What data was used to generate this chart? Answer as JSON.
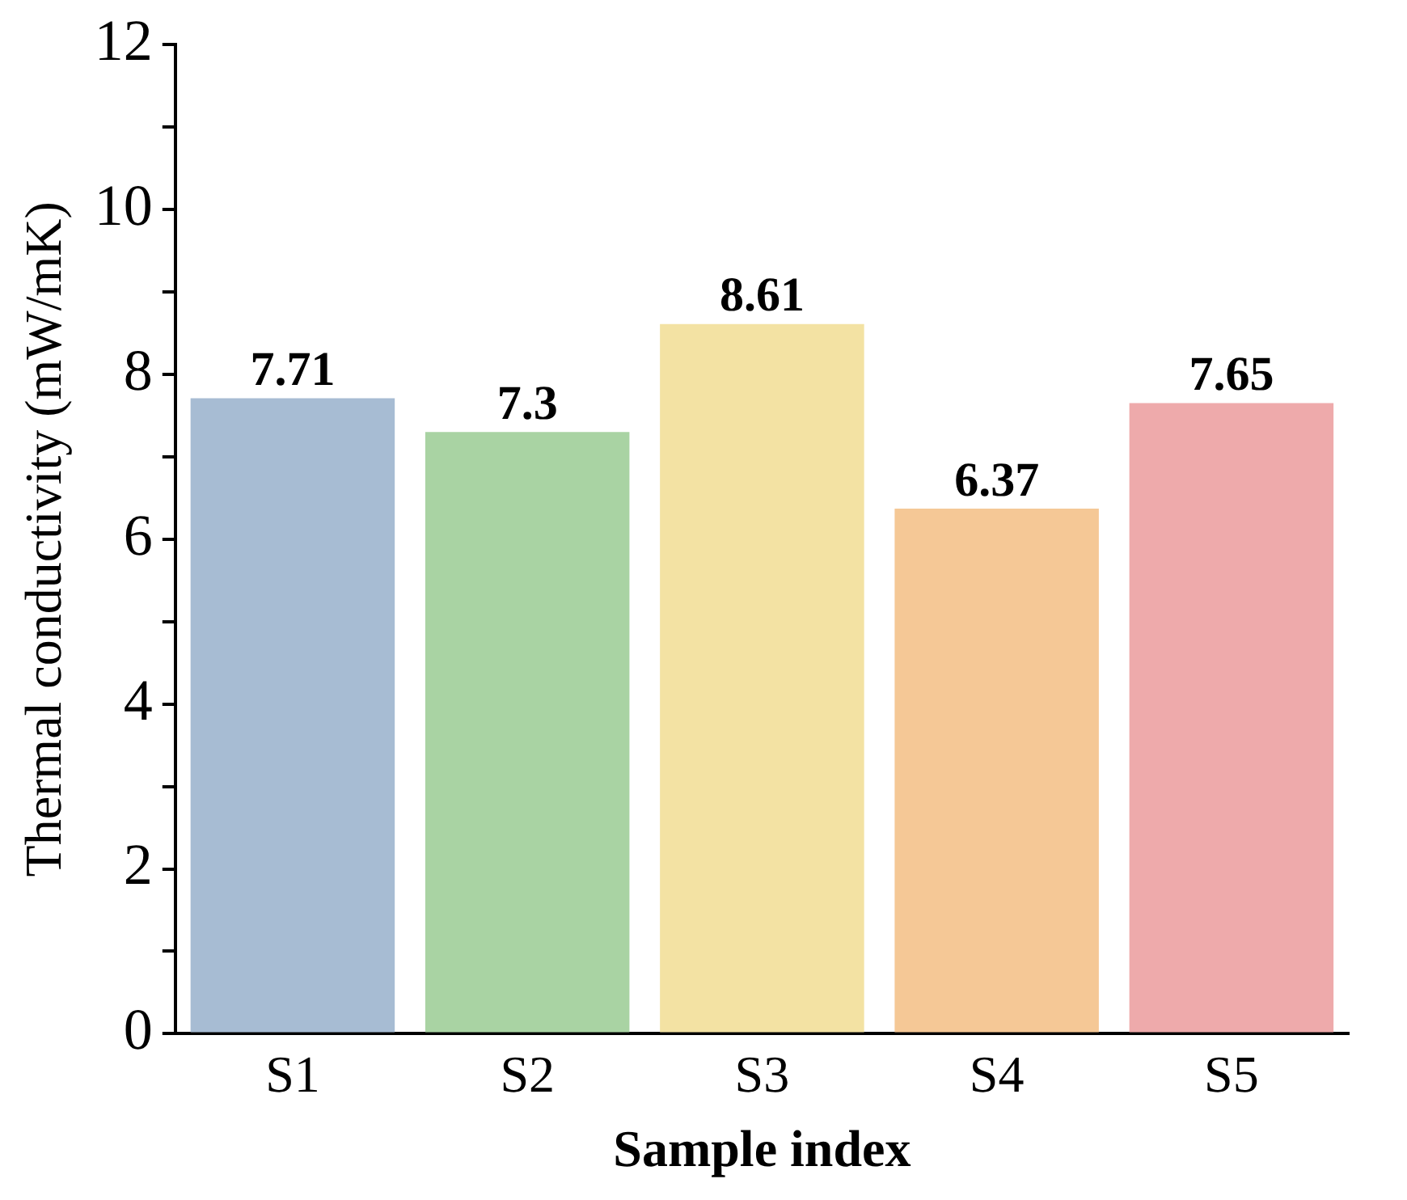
{
  "chart_data": {
    "type": "bar",
    "xlabel": "Sample index",
    "ylabel": "Thermal conductivity (mW/mK)",
    "categories": [
      "S1",
      "S2",
      "S3",
      "S4",
      "S5"
    ],
    "values": [
      7.71,
      7.3,
      8.61,
      6.37,
      7.65
    ],
    "colors": [
      "#a7bcd3",
      "#a9d3a3",
      "#f3e2a3",
      "#f5c896",
      "#eeaaab"
    ],
    "ylim": [
      0,
      12
    ],
    "yticks": [
      0,
      {
        "value": 1,
        "label": null
      },
      2,
      {
        "value": 3,
        "label": null
      },
      4,
      {
        "value": 5,
        "label": null
      },
      6,
      {
        "value": 7,
        "label": null
      },
      8,
      {
        "value": 9,
        "label": null
      },
      10,
      {
        "value": 11,
        "label": null
      },
      12
    ],
    "data_labels": true,
    "grid": false,
    "legend": false
  }
}
